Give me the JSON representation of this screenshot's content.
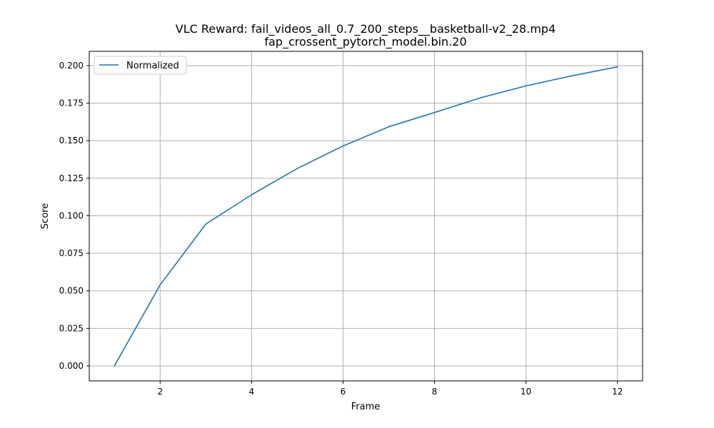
{
  "chart_data": {
    "type": "line",
    "title": "VLC Reward: fail_videos_all_0.7_200_steps__basketball-v2_28.mp4",
    "subtitle": "fap_crossent_pytorch_model.bin.20",
    "xlabel": "Frame",
    "ylabel": "Score",
    "xlim": [
      0.45,
      12.55
    ],
    "ylim": [
      -0.01,
      0.2095
    ],
    "xticks": [
      2,
      4,
      6,
      8,
      10,
      12
    ],
    "yticks": [
      0.0,
      0.025,
      0.05,
      0.075,
      0.1,
      0.125,
      0.15,
      0.175,
      0.2
    ],
    "ytick_labels": [
      "0.000",
      "0.025",
      "0.050",
      "0.075",
      "0.100",
      "0.125",
      "0.150",
      "0.175",
      "0.200"
    ],
    "grid": true,
    "legend_position": "top-left",
    "colors": {
      "series": "#1f77b4"
    },
    "series": [
      {
        "name": "Normalized",
        "x": [
          1,
          2,
          3,
          4,
          5,
          6,
          7,
          8,
          9,
          10,
          11,
          12
        ],
        "values": [
          0.0,
          0.054,
          0.0945,
          0.114,
          0.1315,
          0.1465,
          0.1593,
          0.1688,
          0.1785,
          0.1865,
          0.1932,
          0.1992
        ]
      }
    ]
  }
}
